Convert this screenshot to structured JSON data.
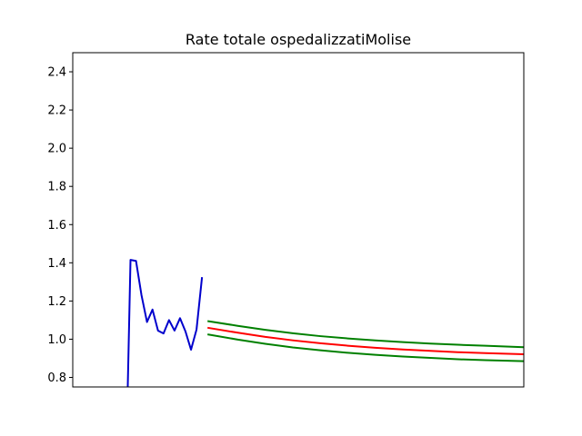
{
  "chart_data": {
    "type": "line",
    "title": "Rate totale ospedalizzatiMolise",
    "xlabel": "",
    "ylabel": "",
    "ylim": [
      0.75,
      2.5
    ],
    "xlim": [
      0,
      82
    ],
    "yticks": [
      "0.8",
      "1.0",
      "1.2",
      "1.4",
      "1.6",
      "1.8",
      "2.0",
      "2.2",
      "2.4"
    ],
    "grid": false,
    "series": [
      {
        "color": "#0000cc",
        "x": [
          10,
          10.5,
          11.5,
          12.5,
          13.5,
          14.5,
          15.5,
          16.5,
          17.5,
          18.5,
          19.5,
          20.5,
          21.5,
          22.5
        ],
        "y": [
          0.75,
          1.415,
          1.41,
          1.23,
          1.09,
          1.155,
          1.045,
          1.03,
          1.1,
          1.045,
          1.11,
          1.04,
          0.945,
          1.05
        ]
      },
      {
        "color": "#0000cc",
        "x": [
          22.5,
          23.5
        ],
        "y": [
          1.05,
          1.325
        ]
      },
      {
        "color": "#ff0000",
        "x": [
          24.5,
          30,
          35,
          40,
          45,
          50,
          55,
          60,
          65,
          70,
          75,
          82
        ],
        "y": [
          1.06,
          1.034,
          1.012,
          0.994,
          0.979,
          0.966,
          0.955,
          0.946,
          0.939,
          0.932,
          0.927,
          0.921
        ]
      },
      {
        "color": "#008000",
        "x": [
          24.5,
          30,
          35,
          40,
          45,
          50,
          55,
          60,
          65,
          70,
          75,
          82
        ],
        "y": [
          1.095,
          1.07,
          1.049,
          1.031,
          1.016,
          1.004,
          0.994,
          0.985,
          0.977,
          0.971,
          0.966,
          0.958
        ]
      },
      {
        "color": "#008000",
        "x": [
          24.5,
          30,
          35,
          40,
          45,
          50,
          55,
          60,
          65,
          70,
          75,
          82
        ],
        "y": [
          1.025,
          0.998,
          0.976,
          0.957,
          0.942,
          0.929,
          0.918,
          0.909,
          0.902,
          0.895,
          0.89,
          0.885
        ]
      }
    ]
  }
}
